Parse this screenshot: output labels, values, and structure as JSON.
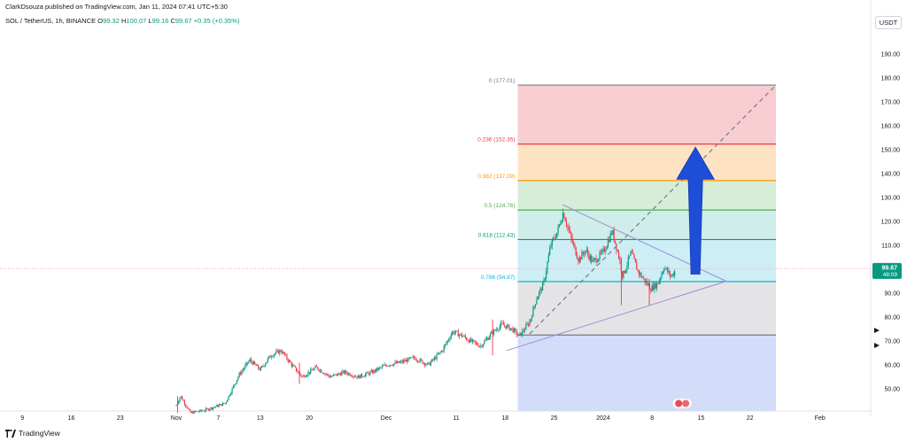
{
  "header": {
    "published_by": "ClarkDsouza published on TradingView.com, Jan 11, 2024 07:41 UTC+5:30",
    "symbol": "SOL / TetherUS, 1h, BINANCE",
    "open_label": "O",
    "open": "99.32",
    "high_label": "H",
    "high": "100.07",
    "low_label": "L",
    "low": "99.16",
    "close_label": "C",
    "close": "99.67",
    "change": "+0.35 (+0.35%)"
  },
  "currency": "USDT",
  "footer": {
    "brand": "TradingView"
  },
  "colors": {
    "up": "#089981",
    "down": "#f23645",
    "accent_arrow": "#1e4ed8",
    "trendline": "#9c8fd8",
    "last_price_bg": "#089981"
  },
  "chart_data": {
    "type": "candlestick",
    "title": "",
    "xlabel": "",
    "ylabel": "",
    "ylim": [
      40,
      195
    ],
    "yticks": [
      50,
      60,
      70,
      80,
      90,
      100,
      110,
      120,
      130,
      140,
      150,
      160,
      170,
      180,
      190
    ],
    "ytick_labels": [
      "50.00",
      "60.00",
      "70.00",
      "80.00",
      "90.00",
      "100.00",
      "110.00",
      "120.00",
      "130.00",
      "140.00",
      "150.00",
      "160.00",
      "170.00",
      "180.00",
      "190.00"
    ],
    "xticks": [
      {
        "label": "9",
        "day": -22
      },
      {
        "label": "16",
        "day": -15
      },
      {
        "label": "23",
        "day": -8
      },
      {
        "label": "Nov",
        "day": 0
      },
      {
        "label": "7",
        "day": 6
      },
      {
        "label": "13",
        "day": 12
      },
      {
        "label": "20",
        "day": 19
      },
      {
        "label": "Dec",
        "day": 30
      },
      {
        "label": "11",
        "day": 40
      },
      {
        "label": "18",
        "day": 47
      },
      {
        "label": "25",
        "day": 54
      },
      {
        "label": "2024",
        "day": 61
      },
      {
        "label": "8",
        "day": 68
      },
      {
        "label": "15",
        "day": 75
      },
      {
        "label": "22",
        "day": 82
      },
      {
        "label": "Feb",
        "day": 92
      }
    ],
    "price_path": [
      {
        "day": 0,
        "price": 43
      },
      {
        "day": 0.6,
        "price": 47
      },
      {
        "day": 2,
        "price": 40
      },
      {
        "day": 4,
        "price": 41
      },
      {
        "day": 7,
        "price": 44
      },
      {
        "day": 9,
        "price": 56
      },
      {
        "day": 10.5,
        "price": 62
      },
      {
        "day": 12,
        "price": 58
      },
      {
        "day": 13.5,
        "price": 64
      },
      {
        "day": 15,
        "price": 66
      },
      {
        "day": 16.5,
        "price": 60
      },
      {
        "day": 18,
        "price": 55
      },
      {
        "day": 20,
        "price": 59
      },
      {
        "day": 22,
        "price": 55
      },
      {
        "day": 24,
        "price": 57
      },
      {
        "day": 26,
        "price": 55
      },
      {
        "day": 28,
        "price": 57
      },
      {
        "day": 30,
        "price": 60
      },
      {
        "day": 32,
        "price": 61
      },
      {
        "day": 34,
        "price": 63
      },
      {
        "day": 36,
        "price": 60
      },
      {
        "day": 38,
        "price": 66
      },
      {
        "day": 39.5,
        "price": 74
      },
      {
        "day": 41,
        "price": 72
      },
      {
        "day": 42,
        "price": 70
      },
      {
        "day": 43.5,
        "price": 68
      },
      {
        "day": 45,
        "price": 73
      },
      {
        "day": 46.5,
        "price": 77
      },
      {
        "day": 48,
        "price": 75
      },
      {
        "day": 49,
        "price": 72
      },
      {
        "day": 50.5,
        "price": 78
      },
      {
        "day": 51.5,
        "price": 88
      },
      {
        "day": 52.5,
        "price": 94
      },
      {
        "day": 53.5,
        "price": 110
      },
      {
        "day": 54.5,
        "price": 116
      },
      {
        "day": 55.3,
        "price": 124
      },
      {
        "day": 56.5,
        "price": 112
      },
      {
        "day": 57.5,
        "price": 104
      },
      {
        "day": 58.5,
        "price": 108
      },
      {
        "day": 59.5,
        "price": 103
      },
      {
        "day": 61,
        "price": 107
      },
      {
        "day": 62.3,
        "price": 116
      },
      {
        "day": 63.2,
        "price": 106
      },
      {
        "day": 63.8,
        "price": 97
      },
      {
        "day": 65,
        "price": 107
      },
      {
        "day": 66,
        "price": 99
      },
      {
        "day": 67,
        "price": 95
      },
      {
        "day": 67.8,
        "price": 92
      },
      {
        "day": 68.8,
        "price": 94
      },
      {
        "day": 69.7,
        "price": 101
      },
      {
        "day": 70.7,
        "price": 97
      },
      {
        "day": 71.4,
        "price": 99.67
      }
    ],
    "spikes": [
      {
        "day": 0.2,
        "high": 47,
        "low": 40
      },
      {
        "day": 17.6,
        "high": 61,
        "low": 52
      },
      {
        "day": 45.2,
        "high": 79,
        "low": 64
      },
      {
        "day": 63.6,
        "high": 105,
        "low": 85
      },
      {
        "day": 67.6,
        "high": 96,
        "low": 85
      }
    ],
    "fibonacci": [
      {
        "level": "0",
        "price": 177.01,
        "label": "0 (177.01)",
        "color": "#787b86"
      },
      {
        "level": "0.236",
        "price": 152.35,
        "label": "0.236 (152.35)",
        "color": "#f23645"
      },
      {
        "level": "0.382",
        "price": 137.09,
        "label": "0.382 (137.09)",
        "color": "#ff9800"
      },
      {
        "level": "0.5",
        "price": 124.76,
        "label": "0.5 (124.76)",
        "color": "#4caf50"
      },
      {
        "level": "0.618",
        "price": 112.43,
        "label": "0.618 (112.43)",
        "color": "#089981"
      },
      {
        "level": "0.786",
        "price": 94.87,
        "label": "0.786 (94.87)",
        "color": "#00bcd4"
      },
      {
        "level": "1",
        "price": 72.51,
        "label": "",
        "color": "#787b86"
      },
      {
        "level": "1.618",
        "price": 40,
        "label": "",
        "color": "#2962ff"
      }
    ],
    "fib_zone_fills": [
      "#f7cdd2",
      "#fde3c4",
      "#d6edd8",
      "#cfeee9",
      "#cdeef4",
      "#e4e4e6",
      "#d3ddfa"
    ],
    "fib_start_day": 48.8,
    "fib_end_day": 85.7,
    "triangle": {
      "upper": [
        {
          "day": 55.2,
          "price": 127
        },
        {
          "day": 78.6,
          "price": 95
        }
      ],
      "lower": [
        {
          "day": 47.2,
          "price": 66
        },
        {
          "day": 78.6,
          "price": 95
        }
      ]
    },
    "dashed_projection": [
      {
        "day": 50.5,
        "price": 73
      },
      {
        "day": 85.7,
        "price": 177
      }
    ],
    "arrow": {
      "from": {
        "day": 74.2,
        "price": 98
      },
      "to": {
        "day": 74.2,
        "price": 151
      }
    },
    "last_price": {
      "price": 99.67,
      "label": "99.67",
      "countdown": "48:09"
    },
    "current_price_line": 100.3
  }
}
